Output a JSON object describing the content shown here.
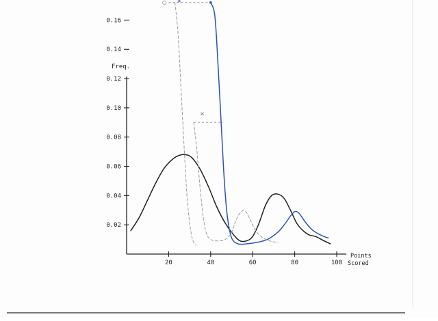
{
  "chart_data": {
    "type": "line",
    "title": "",
    "ylabel": "Freq.",
    "xlabel": "Points Scored",
    "xlabel_lines": [
      "Points",
      "Scored"
    ],
    "xlim": [
      0,
      100
    ],
    "ylim": [
      0,
      0.17
    ],
    "xticks": [
      {
        "value": 20,
        "label": "20"
      },
      {
        "value": 40,
        "label": "40"
      },
      {
        "value": 60,
        "label": "60"
      },
      {
        "value": 80,
        "label": "80"
      },
      {
        "value": 100,
        "label": "100"
      }
    ],
    "yticks": [
      {
        "value": 0.02,
        "label": "0.02"
      },
      {
        "value": 0.04,
        "label": "0.04"
      },
      {
        "value": 0.06,
        "label": "0.06"
      },
      {
        "value": 0.08,
        "label": "0.08"
      },
      {
        "value": 0.1,
        "label": "0.10"
      },
      {
        "value": 0.12,
        "label": "0.12"
      },
      {
        "value": 0.14,
        "label": "0.14"
      },
      {
        "value": 0.16,
        "label": "0.16"
      }
    ],
    "grid": false,
    "series": [
      {
        "color": "#1e1e1e",
        "style": "solid",
        "points": [
          [
            2,
            0.016
          ],
          [
            6,
            0.025
          ],
          [
            10,
            0.037
          ],
          [
            14,
            0.049
          ],
          [
            18,
            0.059
          ],
          [
            22,
            0.065
          ],
          [
            25,
            0.0675
          ],
          [
            28,
            0.068
          ],
          [
            31,
            0.066
          ],
          [
            35,
            0.058
          ],
          [
            39,
            0.046
          ],
          [
            43,
            0.032
          ],
          [
            47,
            0.021
          ],
          [
            51,
            0.013
          ],
          [
            54,
            0.009
          ],
          [
            57,
            0.009
          ],
          [
            60,
            0.012
          ],
          [
            63,
            0.021
          ],
          [
            66,
            0.033
          ],
          [
            69,
            0.04
          ],
          [
            72,
            0.041
          ],
          [
            75,
            0.038
          ],
          [
            78,
            0.03
          ],
          [
            81,
            0.021
          ],
          [
            84,
            0.016
          ],
          [
            87,
            0.013
          ],
          [
            90,
            0.012
          ],
          [
            94,
            0.009
          ],
          [
            97,
            0.007
          ]
        ]
      },
      {
        "color": "#2a52b8",
        "style": "solid",
        "points": [
          [
            40,
            0.172
          ],
          [
            42,
            0.163
          ],
          [
            43.5,
            0.13
          ],
          [
            45,
            0.09
          ],
          [
            46.5,
            0.05
          ],
          [
            48,
            0.025
          ],
          [
            50,
            0.011
          ],
          [
            53,
            0.007
          ],
          [
            57,
            0.007
          ],
          [
            62,
            0.008
          ],
          [
            67,
            0.01
          ],
          [
            72,
            0.015
          ],
          [
            75,
            0.02
          ],
          [
            78,
            0.026
          ],
          [
            80,
            0.029
          ],
          [
            82,
            0.028
          ],
          [
            85,
            0.022
          ],
          [
            88,
            0.017
          ],
          [
            91,
            0.014
          ],
          [
            94,
            0.012
          ],
          [
            96,
            0.011
          ]
        ]
      },
      {
        "color": "#9a9a9a",
        "style": "dashed",
        "points": [
          [
            32,
            0.09
          ],
          [
            33.5,
            0.07
          ],
          [
            35,
            0.045
          ],
          [
            36.5,
            0.025
          ],
          [
            38,
            0.014
          ],
          [
            40,
            0.01
          ],
          [
            43,
            0.009
          ],
          [
            47,
            0.01
          ],
          [
            50,
            0.015
          ],
          [
            52,
            0.023
          ],
          [
            54,
            0.028
          ],
          [
            56,
            0.03
          ],
          [
            58,
            0.026
          ],
          [
            61,
            0.017
          ],
          [
            64,
            0.012
          ],
          [
            68,
            0.009
          ],
          [
            72,
            0.008
          ]
        ]
      },
      {
        "color": "#9a9a9a",
        "style": "dashed",
        "points": [
          [
            23,
            0.172
          ],
          [
            24.5,
            0.15
          ],
          [
            26,
            0.11
          ],
          [
            27.5,
            0.07
          ],
          [
            29,
            0.035
          ],
          [
            31,
            0.012
          ],
          [
            33,
            0.006
          ]
        ]
      }
    ],
    "guides": [
      {
        "color": "#9a9a9a",
        "points": [
          [
            32,
            0.09
          ],
          [
            46,
            0.09
          ]
        ]
      },
      {
        "color": "#9a9a9a",
        "points": [
          [
            20,
            0.172
          ],
          [
            40,
            0.172
          ]
        ]
      }
    ],
    "markers": [
      {
        "label": "×",
        "x": 36,
        "y": 0.096,
        "color": "#6e6e6e"
      },
      {
        "label": "×",
        "x": 25,
        "y": 0.173,
        "color": "#2a52b8"
      },
      {
        "label": "○",
        "x": 18,
        "y": 0.172,
        "color": "#8a8a8a"
      }
    ]
  }
}
